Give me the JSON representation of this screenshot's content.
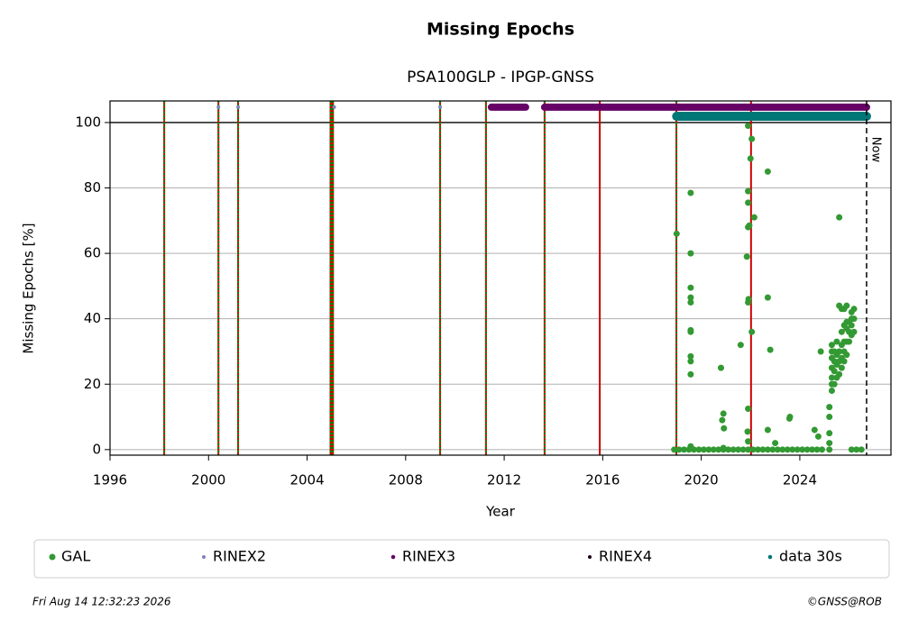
{
  "chart_data": {
    "type": "scatter",
    "title": "Missing Epochs",
    "subtitle": "PSA100GLP - IPGP-GNSS",
    "xlabel": "Year",
    "ylabel": "Missing Epochs [%]",
    "xlim": [
      1996,
      2027.7
    ],
    "ylim": [
      -1.7,
      106.6
    ],
    "xticks": [
      1996,
      2000,
      2004,
      2008,
      2012,
      2016,
      2020,
      2024
    ],
    "yticks": [
      0,
      20,
      40,
      60,
      80,
      100
    ],
    "grid": true,
    "hline": {
      "value": 100,
      "color": "#000000"
    },
    "now": {
      "x": 2026.71,
      "label": "Now"
    },
    "vlines": [
      {
        "x": 1998.2,
        "color": "#cc0000",
        "dash_color": "#008800"
      },
      {
        "x": 2000.4,
        "color": "#cc0000",
        "dash_color": "#008800"
      },
      {
        "x": 2001.2,
        "color": "#cc0000",
        "dash_color": "#008800"
      },
      {
        "x": 2004.95,
        "color": "#cc0000",
        "dash_color": "#008800"
      },
      {
        "x": 2005.0,
        "color": "#cc0000",
        "dash_color": "#008800"
      },
      {
        "x": 2005.05,
        "color": "#cc0000",
        "dash_color": "#008800"
      },
      {
        "x": 2009.4,
        "color": "#cc0000",
        "dash_color": "#008800"
      },
      {
        "x": 2011.26,
        "color": "#cc0000",
        "dash_color": "#008800"
      },
      {
        "x": 2013.64,
        "color": "#cc0000",
        "dash_color": "#008800"
      },
      {
        "x": 2015.88,
        "color": "#cc0000"
      },
      {
        "x": 2018.99,
        "color": "#cc0000",
        "dash_color": "#008800"
      },
      {
        "x": 2022.02,
        "color": "#cc0000"
      }
    ],
    "series": [
      {
        "name": "GAL",
        "color": "#339933",
        "style": "points",
        "size": 3.5,
        "x": [
          2018.9,
          2019.1,
          2019.3,
          2019.5,
          2019.7,
          2019.9,
          2020.1,
          2020.3,
          2020.5,
          2020.7,
          2020.9,
          2021.1,
          2021.3,
          2021.5,
          2021.7,
          2021.9,
          2022.1,
          2022.3,
          2022.5,
          2022.7,
          2022.9,
          2023.1,
          2023.3,
          2023.5,
          2023.7,
          2023.9,
          2024.1,
          2024.3,
          2024.5,
          2024.7,
          2024.9,
          2026.1,
          2026.3,
          2026.5,
          2019.0,
          2019.57,
          2019.57,
          2019.57,
          2019.57,
          2019.57,
          2019.57,
          2019.57,
          2019.57,
          2019.57,
          2019.57,
          2019.57,
          2020.8,
          2020.85,
          2020.9,
          2020.92,
          2020.9,
          2021.6,
          2021.85,
          2021.9,
          2021.9,
          2021.9,
          2021.9,
          2021.95,
          2021.9,
          2021.92,
          2021.9,
          2021.88,
          2021.9,
          2022.0,
          2022.05,
          2022.15,
          2022.05,
          2022.7,
          2022.7,
          2022.8,
          2022.7,
          2023.0,
          2023.6,
          2023.58,
          2024.6,
          2024.75,
          2024.85,
          2025.6,
          2025.2,
          2025.2,
          2025.2,
          2025.2,
          2025.2,
          2025.3,
          2025.3,
          2025.3,
          2025.3,
          2025.3,
          2025.3,
          2025.3,
          2025.4,
          2025.4,
          2025.4,
          2025.4,
          2025.5,
          2025.5,
          2025.5,
          2025.5,
          2025.6,
          2025.6,
          2025.6,
          2025.6,
          2025.7,
          2025.7,
          2025.7,
          2025.7,
          2025.7,
          2025.8,
          2025.8,
          2025.8,
          2025.8,
          2025.8,
          2025.9,
          2025.9,
          2025.9,
          2025.9,
          2025.9,
          2026.0,
          2026.0,
          2026.0,
          2026.1,
          2026.1,
          2026.1,
          2026.1,
          2026.2,
          2026.2,
          2026.2
        ],
        "values": [
          0,
          0,
          0,
          0,
          0,
          0,
          0,
          0,
          0,
          0,
          0,
          0,
          0,
          0,
          0,
          0,
          0,
          0,
          0,
          0,
          0,
          0,
          0,
          0,
          0,
          0,
          0,
          0,
          0,
          0,
          0,
          0,
          0,
          0,
          66,
          78.5,
          60,
          49.5,
          46.5,
          45,
          36.5,
          36,
          28.5,
          27,
          23,
          1,
          25,
          9,
          11,
          6.5,
          0.5,
          32,
          59,
          99,
          79,
          75.5,
          68,
          68.5,
          45,
          46,
          12.5,
          5.5,
          2.5,
          89,
          95,
          71,
          36,
          85,
          46.5,
          30.5,
          6,
          2,
          10,
          9.5,
          6,
          4,
          30,
          71,
          0,
          2,
          5,
          10,
          13,
          18,
          20,
          22,
          25,
          28,
          30,
          32,
          20,
          24,
          27,
          30,
          22,
          26,
          29,
          33,
          23,
          27,
          30,
          44,
          25,
          28,
          32,
          43,
          36,
          27,
          30,
          33,
          38,
          43,
          29,
          33,
          37,
          39,
          44,
          33,
          36,
          39,
          35,
          38,
          40,
          42,
          36,
          40,
          43
        ]
      },
      {
        "name": "RINEX2",
        "color": "#7f7fbf",
        "style": "points",
        "size": 2,
        "x": [
          2000.4,
          2001.2,
          2005.1,
          2009.4
        ],
        "values": [
          104.7,
          104.7,
          104.7,
          104.7
        ]
      },
      {
        "name": "RINEX3",
        "color": "#660066",
        "style": "line",
        "size": 4,
        "x": [
          2011.48,
          2012.87,
          null,
          2013.64,
          2026.71
        ],
        "values": [
          104.7,
          104.7,
          null,
          104.7,
          104.7
        ]
      },
      {
        "name": "RINEX4",
        "color": "#1a001a",
        "style": "points",
        "size": 2,
        "x": [],
        "values": []
      },
      {
        "name": "data 30s",
        "color": "#007777",
        "style": "line",
        "size": 5,
        "x": [
          2019.0,
          2026.71
        ],
        "values": [
          101.9,
          101.9
        ]
      }
    ]
  },
  "footer": {
    "timestamp": "Fri Aug 14 12:32:23 2026",
    "credit": "©GNSS@ROB"
  }
}
